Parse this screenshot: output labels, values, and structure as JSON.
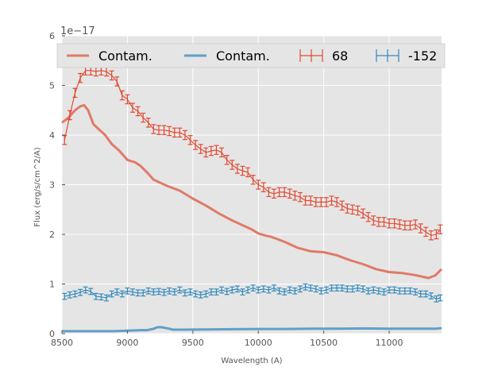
{
  "chart_data": {
    "type": "line",
    "xlabel": "Wavelength (A)",
    "ylabel": "Flux (erg/s/cm^2/A)",
    "y_offset_label": "1e−17",
    "xlim": [
      8500,
      11400
    ],
    "ylim": [
      0,
      6
    ],
    "x_ticks": [
      8500,
      9000,
      9500,
      10000,
      10500,
      11000
    ],
    "y_ticks": [
      0,
      1,
      2,
      3,
      4,
      5,
      6
    ],
    "grid": true,
    "legend_position": "top",
    "series": [
      {
        "name": "Contam.",
        "kind": "line",
        "color": "#e07a68",
        "x": [
          8500,
          8550,
          8600,
          8640,
          8670,
          8700,
          8740,
          8780,
          8830,
          8880,
          8940,
          9000,
          9060,
          9100,
          9150,
          9200,
          9300,
          9400,
          9500,
          9600,
          9700,
          9800,
          9900,
          9950,
          10000,
          10050,
          10100,
          10200,
          10300,
          10400,
          10500,
          10600,
          10700,
          10800,
          10900,
          11000,
          11100,
          11200,
          11300,
          11350,
          11400
        ],
        "y": [
          4.25,
          4.35,
          4.5,
          4.58,
          4.6,
          4.5,
          4.22,
          4.12,
          4.0,
          3.82,
          3.68,
          3.5,
          3.45,
          3.38,
          3.25,
          3.1,
          2.98,
          2.88,
          2.72,
          2.58,
          2.42,
          2.28,
          2.16,
          2.1,
          2.02,
          1.98,
          1.95,
          1.85,
          1.73,
          1.66,
          1.64,
          1.58,
          1.48,
          1.4,
          1.3,
          1.24,
          1.22,
          1.18,
          1.12,
          1.17,
          1.3
        ]
      },
      {
        "name": "Contam.",
        "kind": "line",
        "color": "#5fa0c8",
        "x": [
          8500,
          8700,
          8900,
          9000,
          9100,
          9150,
          9200,
          9230,
          9260,
          9300,
          9350,
          9400,
          9600,
          9800,
          10000,
          10200,
          10400,
          10600,
          10800,
          11000,
          11200,
          11350,
          11400
        ],
        "y": [
          0.05,
          0.05,
          0.05,
          0.06,
          0.07,
          0.07,
          0.1,
          0.13,
          0.13,
          0.11,
          0.08,
          0.08,
          0.085,
          0.09,
          0.095,
          0.095,
          0.1,
          0.1,
          0.105,
          0.1,
          0.1,
          0.1,
          0.11
        ]
      },
      {
        "name": "68",
        "kind": "errorbar",
        "color": "#e24a33",
        "x": [
          8520,
          8560,
          8600,
          8640,
          8680,
          8720,
          8760,
          8800,
          8840,
          8880,
          8920,
          8960,
          9000,
          9040,
          9080,
          9120,
          9160,
          9200,
          9240,
          9280,
          9320,
          9360,
          9400,
          9440,
          9480,
          9520,
          9560,
          9600,
          9640,
          9680,
          9720,
          9760,
          9800,
          9840,
          9880,
          9920,
          9960,
          10000,
          10040,
          10080,
          10120,
          10160,
          10200,
          10240,
          10280,
          10320,
          10360,
          10400,
          10440,
          10480,
          10520,
          10560,
          10600,
          10640,
          10680,
          10720,
          10760,
          10800,
          10840,
          10880,
          10920,
          10960,
          11000,
          11040,
          11080,
          11120,
          11160,
          11200,
          11240,
          11280,
          11320,
          11360,
          11390
        ],
        "y": [
          3.9,
          4.4,
          4.85,
          5.15,
          5.3,
          5.3,
          5.28,
          5.3,
          5.28,
          5.2,
          5.08,
          4.8,
          4.72,
          4.55,
          4.48,
          4.35,
          4.25,
          4.12,
          4.1,
          4.1,
          4.08,
          4.05,
          4.05,
          4.0,
          3.9,
          3.8,
          3.72,
          3.65,
          3.68,
          3.7,
          3.65,
          3.5,
          3.4,
          3.32,
          3.28,
          3.25,
          3.1,
          3.0,
          2.95,
          2.85,
          2.82,
          2.85,
          2.85,
          2.82,
          2.78,
          2.75,
          2.68,
          2.68,
          2.65,
          2.65,
          2.65,
          2.68,
          2.65,
          2.58,
          2.52,
          2.5,
          2.48,
          2.42,
          2.35,
          2.28,
          2.25,
          2.25,
          2.22,
          2.22,
          2.2,
          2.18,
          2.18,
          2.2,
          2.12,
          2.05,
          1.98,
          2.0,
          2.1
        ],
        "err": 0.09
      },
      {
        "name": "-152",
        "kind": "errorbar",
        "color": "#348abd",
        "x": [
          8520,
          8560,
          8600,
          8640,
          8680,
          8720,
          8760,
          8800,
          8840,
          8880,
          8920,
          8960,
          9000,
          9040,
          9080,
          9120,
          9160,
          9200,
          9240,
          9280,
          9320,
          9360,
          9400,
          9440,
          9480,
          9520,
          9560,
          9600,
          9640,
          9680,
          9720,
          9760,
          9800,
          9840,
          9880,
          9920,
          9960,
          10000,
          10040,
          10080,
          10120,
          10160,
          10200,
          10240,
          10280,
          10320,
          10360,
          10400,
          10440,
          10480,
          10520,
          10560,
          10600,
          10640,
          10680,
          10720,
          10760,
          10800,
          10840,
          10880,
          10920,
          10960,
          11000,
          11040,
          11080,
          11120,
          11160,
          11200,
          11240,
          11280,
          11320,
          11360,
          11390
        ],
        "y": [
          0.75,
          0.78,
          0.8,
          0.83,
          0.88,
          0.85,
          0.75,
          0.74,
          0.72,
          0.8,
          0.84,
          0.8,
          0.86,
          0.84,
          0.82,
          0.82,
          0.86,
          0.84,
          0.85,
          0.83,
          0.86,
          0.84,
          0.88,
          0.82,
          0.84,
          0.8,
          0.78,
          0.8,
          0.84,
          0.84,
          0.88,
          0.85,
          0.88,
          0.9,
          0.84,
          0.88,
          0.92,
          0.88,
          0.9,
          0.88,
          0.92,
          0.86,
          0.84,
          0.88,
          0.86,
          0.9,
          0.94,
          0.92,
          0.9,
          0.86,
          0.88,
          0.92,
          0.92,
          0.92,
          0.9,
          0.9,
          0.92,
          0.9,
          0.86,
          0.88,
          0.86,
          0.84,
          0.88,
          0.88,
          0.86,
          0.86,
          0.86,
          0.84,
          0.8,
          0.8,
          0.76,
          0.7,
          0.72
        ],
        "err": 0.06
      }
    ]
  }
}
